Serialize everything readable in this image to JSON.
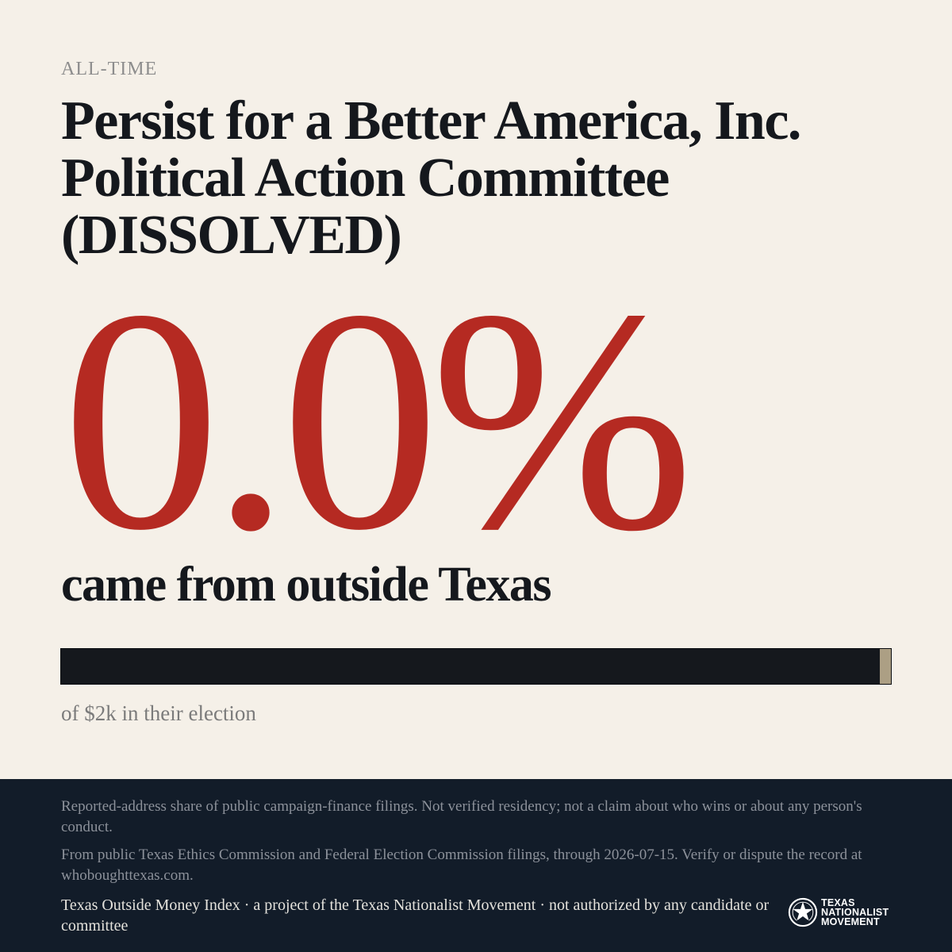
{
  "header": {
    "eyebrow": "ALL-TIME",
    "title": "Persist for a Better America, Inc. Political Action Committee (DISSOLVED)"
  },
  "stat": {
    "percent_label": "0.0%",
    "percent_value": 0.0,
    "subhead": "came from outside Texas"
  },
  "bar": {
    "fraction_outside": 0.0,
    "caption": "of $2k in their election"
  },
  "colors": {
    "background": "#f5f0e8",
    "accent_red": "#b52a22",
    "ink": "#15181d",
    "bar_marker": "#ac9f84",
    "footer_bg": "#121c29"
  },
  "footer": {
    "disclaimer": "Reported-address share of public campaign-finance filings. Not verified residency; not a claim about who wins or about any person's conduct.",
    "source": "From public Texas Ethics Commission and Federal Election Commission filings, through 2026-07-15. Verify or dispute the record at whoboughttexas.com.",
    "credit": "Texas Outside Money Index · a project of the Texas Nationalist Movement · not authorized by any candidate or committee",
    "logo": {
      "icon": "star-badge-icon",
      "line1": "TEXAS",
      "line2": "NATIONALIST",
      "line3": "MOVEMENT"
    }
  }
}
